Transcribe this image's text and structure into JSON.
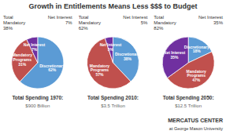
{
  "title": "Growth in Entitlements Means Less $$$ to Budget",
  "chart_data": [
    {
      "type": "pie",
      "title": "Total Spending 1970:",
      "subtitle": "$900 Billion",
      "categories": [
        "Discretionary",
        "Mandatory\nPrograms",
        "Net Interest"
      ],
      "values": [
        62,
        31,
        7
      ],
      "value_labels": [
        "62%",
        "31%",
        "7%"
      ],
      "colors": [
        "#5b9bd5",
        "#c0504d",
        "#7030a0"
      ],
      "data_labels": true,
      "annotations": [
        "Total\nMandatory\n38%",
        "Net Interest\n7%"
      ]
    },
    {
      "type": "pie",
      "title": "Total Spending 2010:",
      "subtitle": "$3.5 Trillion",
      "categories": [
        "Discretionary",
        "Mandatory\nPrograms",
        "Net Interest"
      ],
      "values": [
        38,
        57,
        5
      ],
      "value_labels": [
        "38%",
        "57%",
        "5%"
      ],
      "colors": [
        "#5b9bd5",
        "#c0504d",
        "#7030a0"
      ],
      "data_labels": true,
      "annotations": [
        "Total\nMandatory\n62%",
        "Net Interest\n5%"
      ]
    },
    {
      "type": "pie",
      "title": "Total Spending 2050:",
      "subtitle": "$12.5 Trillion",
      "categories": [
        "Discretionary",
        "Mandatory\nPrograms",
        "Net Interest"
      ],
      "values": [
        18,
        47,
        35
      ],
      "value_labels": [
        "18%",
        "47%",
        "35%"
      ],
      "colors": [
        "#5b9bd5",
        "#c0504d",
        "#7030a0"
      ],
      "data_labels": true,
      "annotations": [
        "Total\nMandatory\n82%",
        "Net Interest\n35%"
      ]
    }
  ],
  "annotations": [
    "MERCATUS CENTER",
    "at George Mason University"
  ]
}
